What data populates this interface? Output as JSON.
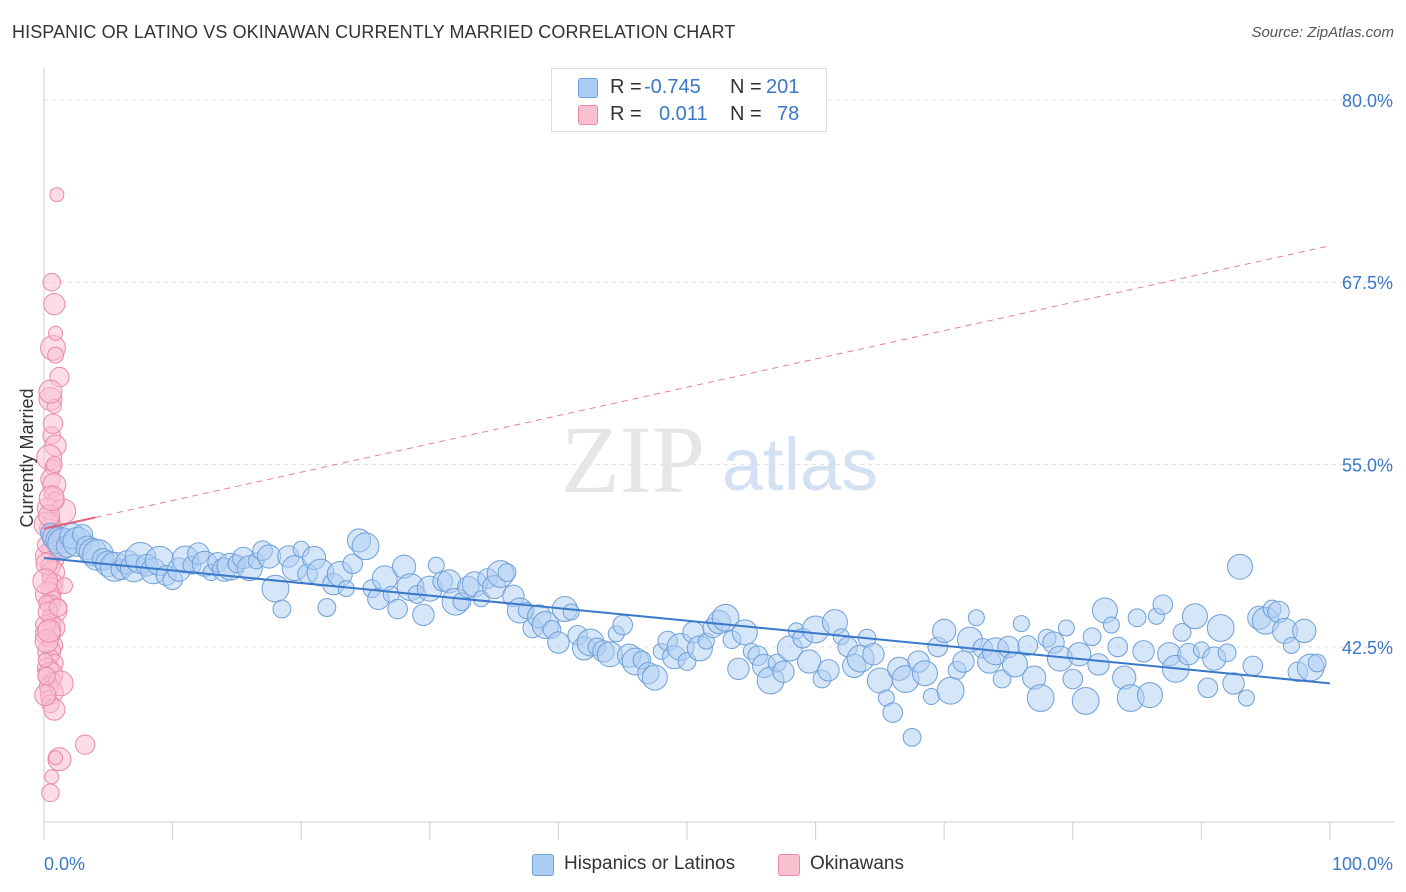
{
  "title": "HISPANIC OR LATINO VS OKINAWAN CURRENTLY MARRIED CORRELATION CHART",
  "source": "Source: ZipAtlas.com",
  "watermark": {
    "zip": "ZIP",
    "atlas": "atlas"
  },
  "legend_top": [
    {
      "r_label": "R =",
      "r_value": "-0.745",
      "n_label": "N =",
      "n_value": "201",
      "color": "#aecdf4",
      "border": "#6f9fd8"
    },
    {
      "r_label": "R =",
      "r_value": "0.011",
      "n_label": "N =",
      "n_value": "78",
      "color": "#f9c0d0",
      "border": "#e98aa8"
    }
  ],
  "legend_bottom": [
    {
      "label": "Hispanics or Latinos",
      "color": "#aecdf4",
      "border": "#6f9fd8"
    },
    {
      "label": "Okinawans",
      "color": "#f9c0d0",
      "border": "#e98aa8"
    }
  ],
  "chart_data": {
    "type": "scatter",
    "title": "HISPANIC OR LATINO VS OKINAWAN CURRENTLY MARRIED CORRELATION CHART",
    "xlabel": "",
    "ylabel": "Currently Married",
    "xlim": [
      0,
      100
    ],
    "ylim": [
      30.5,
      81.5
    ],
    "x_tick_labels": [
      "0.0%",
      "100.0%"
    ],
    "y_ticks": [
      42.5,
      55.0,
      67.5,
      80.0
    ],
    "y_tick_labels": [
      "42.5%",
      "55.0%",
      "67.5%",
      "80.0%"
    ],
    "grid": true,
    "colors": {
      "blue": "#3a78c9",
      "blue_fill": "#aecdf4",
      "pink": "#e0607e",
      "pink_fill": "#f9c0d0"
    },
    "series": [
      {
        "name": "Hispanics or Latinos",
        "trend": {
          "x": [
            0,
            100
          ],
          "y": [
            48.6,
            40.0
          ],
          "style": "solid"
        },
        "points": [
          [
            0.5,
            50.3
          ],
          [
            0.8,
            50.0
          ],
          [
            1.2,
            49.8
          ],
          [
            1.5,
            49.6
          ],
          [
            1.8,
            49.4
          ],
          [
            2.2,
            50.1
          ],
          [
            2.6,
            49.7
          ],
          [
            3.0,
            50.2
          ],
          [
            3.4,
            49.3
          ],
          [
            3.8,
            49.0
          ],
          [
            4.2,
            48.8
          ],
          [
            4.6,
            48.5
          ],
          [
            5.0,
            48.2
          ],
          [
            5.5,
            48.0
          ],
          [
            6.0,
            47.8
          ],
          [
            6.5,
            48.3
          ],
          [
            7.0,
            47.9
          ],
          [
            7.5,
            48.6
          ],
          [
            8.0,
            48.1
          ],
          [
            8.5,
            47.7
          ],
          [
            9.0,
            48.4
          ],
          [
            9.5,
            47.4
          ],
          [
            10.0,
            47.1
          ],
          [
            10.5,
            47.8
          ],
          [
            11.0,
            48.5
          ],
          [
            11.5,
            48.1
          ],
          [
            12.0,
            48.9
          ],
          [
            12.5,
            48.2
          ],
          [
            13.0,
            47.6
          ],
          [
            13.5,
            48.3
          ],
          [
            14.0,
            47.8
          ],
          [
            14.5,
            48.0
          ],
          [
            15.0,
            48.2
          ],
          [
            15.5,
            48.6
          ],
          [
            16.0,
            47.9
          ],
          [
            16.5,
            48.4
          ],
          [
            17.0,
            49.1
          ],
          [
            17.5,
            48.7
          ],
          [
            18.0,
            46.5
          ],
          [
            18.5,
            45.1
          ],
          [
            19.0,
            48.7
          ],
          [
            19.5,
            47.9
          ],
          [
            20.0,
            49.2
          ],
          [
            20.5,
            47.5
          ],
          [
            21.0,
            48.6
          ],
          [
            21.5,
            47.6
          ],
          [
            22.0,
            45.2
          ],
          [
            22.5,
            46.8
          ],
          [
            23.0,
            47.5
          ],
          [
            23.5,
            46.5
          ],
          [
            24.0,
            48.2
          ],
          [
            24.5,
            49.8
          ],
          [
            25.0,
            49.4
          ],
          [
            25.5,
            46.5
          ],
          [
            26.0,
            45.8
          ],
          [
            26.5,
            47.2
          ],
          [
            27.0,
            46.1
          ],
          [
            27.5,
            45.1
          ],
          [
            28.0,
            48.0
          ],
          [
            28.5,
            46.6
          ],
          [
            29.0,
            46.1
          ],
          [
            29.5,
            44.7
          ],
          [
            30.0,
            46.5
          ],
          [
            30.5,
            48.1
          ],
          [
            31.0,
            47.0
          ],
          [
            31.5,
            47.0
          ],
          [
            32.0,
            45.6
          ],
          [
            32.5,
            45.6
          ],
          [
            33.0,
            46.6
          ],
          [
            33.5,
            46.8
          ],
          [
            34.0,
            45.8
          ],
          [
            34.5,
            47.2
          ],
          [
            35.0,
            46.6
          ],
          [
            35.5,
            47.5
          ],
          [
            36.0,
            47.6
          ],
          [
            36.5,
            46.0
          ],
          [
            37.0,
            45.0
          ],
          [
            37.5,
            45.0
          ],
          [
            38.0,
            43.8
          ],
          [
            38.5,
            44.6
          ],
          [
            39.0,
            44.0
          ],
          [
            39.5,
            43.7
          ],
          [
            40.0,
            42.8
          ],
          [
            40.5,
            45.1
          ],
          [
            41.0,
            44.9
          ],
          [
            41.5,
            43.3
          ],
          [
            42.0,
            42.4
          ],
          [
            42.5,
            42.8
          ],
          [
            43.0,
            42.5
          ],
          [
            43.5,
            42.2
          ],
          [
            44.0,
            42.0
          ],
          [
            44.5,
            43.4
          ],
          [
            45.0,
            44.0
          ],
          [
            45.5,
            41.9
          ],
          [
            46.0,
            41.5
          ],
          [
            46.5,
            41.6
          ],
          [
            47.0,
            40.7
          ],
          [
            47.5,
            40.4
          ],
          [
            48.0,
            42.2
          ],
          [
            48.5,
            42.9
          ],
          [
            49.0,
            41.8
          ],
          [
            49.5,
            42.5
          ],
          [
            50.0,
            41.5
          ],
          [
            50.5,
            43.5
          ],
          [
            51.0,
            42.4
          ],
          [
            51.5,
            42.9
          ],
          [
            52.0,
            43.8
          ],
          [
            52.5,
            44.2
          ],
          [
            53.0,
            44.5
          ],
          [
            53.5,
            43.0
          ],
          [
            54.0,
            41.0
          ],
          [
            54.5,
            43.5
          ],
          [
            55.0,
            42.2
          ],
          [
            55.5,
            41.9
          ],
          [
            56.0,
            41.2
          ],
          [
            56.5,
            40.2
          ],
          [
            57.0,
            41.4
          ],
          [
            57.5,
            40.8
          ],
          [
            58.0,
            42.4
          ],
          [
            58.5,
            43.6
          ],
          [
            59.0,
            43.1
          ],
          [
            59.5,
            41.5
          ],
          [
            60.0,
            43.7
          ],
          [
            60.5,
            40.3
          ],
          [
            61.0,
            40.9
          ],
          [
            61.5,
            44.2
          ],
          [
            62.0,
            43.2
          ],
          [
            62.5,
            42.5
          ],
          [
            63.0,
            41.2
          ],
          [
            63.5,
            41.7
          ],
          [
            64.0,
            43.1
          ],
          [
            64.5,
            42.0
          ],
          [
            65.0,
            40.2
          ],
          [
            65.5,
            39.0
          ],
          [
            66.0,
            38.0
          ],
          [
            66.5,
            41.0
          ],
          [
            67.0,
            40.3
          ],
          [
            67.5,
            36.3
          ],
          [
            68.0,
            41.5
          ],
          [
            68.5,
            40.7
          ],
          [
            69.0,
            39.1
          ],
          [
            69.5,
            42.5
          ],
          [
            70.0,
            43.6
          ],
          [
            70.5,
            39.5
          ],
          [
            71.0,
            40.9
          ],
          [
            71.5,
            41.5
          ],
          [
            72.0,
            43.0
          ],
          [
            72.5,
            44.5
          ],
          [
            73.0,
            42.4
          ],
          [
            73.5,
            41.5
          ],
          [
            74.0,
            42.2
          ],
          [
            74.5,
            40.3
          ],
          [
            75.0,
            42.5
          ],
          [
            75.5,
            41.3
          ],
          [
            76.0,
            44.1
          ],
          [
            76.5,
            42.6
          ],
          [
            77.0,
            40.4
          ],
          [
            77.5,
            39.0
          ],
          [
            78.0,
            43.1
          ],
          [
            78.5,
            42.8
          ],
          [
            79.0,
            41.7
          ],
          [
            79.5,
            43.8
          ],
          [
            80.0,
            40.3
          ],
          [
            80.5,
            42.0
          ],
          [
            81.0,
            38.8
          ],
          [
            81.5,
            43.2
          ],
          [
            82.0,
            41.3
          ],
          [
            82.5,
            45.0
          ],
          [
            83.0,
            44.0
          ],
          [
            83.5,
            42.5
          ],
          [
            84.0,
            40.4
          ],
          [
            84.5,
            39.0
          ],
          [
            85.0,
            44.5
          ],
          [
            85.5,
            42.2
          ],
          [
            86.0,
            39.2
          ],
          [
            86.5,
            44.6
          ],
          [
            87.0,
            45.4
          ],
          [
            87.5,
            42.0
          ],
          [
            88.0,
            41.0
          ],
          [
            88.5,
            43.5
          ],
          [
            89.0,
            42.0
          ],
          [
            89.5,
            44.6
          ],
          [
            90.0,
            42.3
          ],
          [
            90.5,
            39.7
          ],
          [
            91.0,
            41.7
          ],
          [
            91.5,
            43.8
          ],
          [
            92.0,
            42.1
          ],
          [
            92.5,
            40.0
          ],
          [
            93.0,
            48.0
          ],
          [
            93.5,
            39.0
          ],
          [
            94.0,
            41.2
          ],
          [
            94.5,
            44.5
          ],
          [
            95.0,
            44.3
          ],
          [
            95.5,
            45.1
          ],
          [
            96.0,
            44.9
          ],
          [
            96.5,
            43.6
          ],
          [
            97.0,
            42.6
          ],
          [
            97.5,
            40.8
          ],
          [
            98.0,
            43.6
          ],
          [
            98.5,
            41.1
          ],
          [
            99.0,
            41.4
          ]
        ]
      },
      {
        "name": "Okinawans",
        "trend": {
          "x": [
            0,
            100
          ],
          "y": [
            50.6,
            70.0
          ],
          "style": "dashed",
          "solid_until_x": 4
        },
        "points": [
          [
            1.0,
            73.5
          ],
          [
            0.6,
            67.5
          ],
          [
            0.8,
            66.0
          ],
          [
            0.7,
            63.0
          ],
          [
            0.9,
            62.5
          ],
          [
            1.2,
            61.0
          ],
          [
            0.5,
            59.5
          ],
          [
            0.8,
            59.0
          ],
          [
            0.6,
            57.0
          ],
          [
            0.9,
            56.3
          ],
          [
            0.4,
            55.5
          ],
          [
            0.7,
            54.8
          ],
          [
            0.5,
            54.0
          ],
          [
            0.8,
            53.6
          ],
          [
            0.6,
            53.0
          ],
          [
            0.9,
            52.5
          ],
          [
            0.3,
            52.0
          ],
          [
            1.5,
            51.8
          ],
          [
            0.6,
            51.2
          ],
          [
            0.4,
            50.6
          ],
          [
            0.7,
            50.2
          ],
          [
            0.5,
            49.8
          ],
          [
            0.8,
            49.5
          ],
          [
            0.6,
            49.1
          ],
          [
            0.3,
            48.7
          ],
          [
            0.9,
            48.4
          ],
          [
            0.5,
            48.0
          ],
          [
            0.7,
            47.6
          ],
          [
            0.4,
            47.2
          ],
          [
            0.8,
            46.9
          ],
          [
            0.6,
            46.5
          ],
          [
            0.3,
            46.1
          ],
          [
            0.7,
            45.8
          ],
          [
            0.5,
            45.4
          ],
          [
            0.9,
            45.0
          ],
          [
            0.4,
            44.6
          ],
          [
            0.6,
            44.2
          ],
          [
            0.8,
            43.8
          ],
          [
            0.3,
            43.4
          ],
          [
            0.5,
            43.0
          ],
          [
            0.7,
            42.6
          ],
          [
            0.4,
            42.2
          ],
          [
            0.6,
            41.8
          ],
          [
            0.8,
            41.4
          ],
          [
            0.3,
            41.0
          ],
          [
            0.5,
            40.6
          ],
          [
            0.7,
            40.2
          ],
          [
            0.4,
            39.8
          ],
          [
            0.6,
            39.4
          ],
          [
            0.3,
            39.0
          ],
          [
            0.5,
            38.6
          ],
          [
            0.8,
            38.2
          ],
          [
            1.3,
            40.0
          ],
          [
            1.6,
            46.7
          ],
          [
            3.2,
            35.8
          ],
          [
            1.2,
            34.8
          ],
          [
            0.6,
            33.6
          ],
          [
            0.5,
            32.5
          ],
          [
            0.2,
            48.2
          ],
          [
            0.1,
            47.0
          ],
          [
            0.2,
            45.5
          ],
          [
            0.1,
            44.0
          ],
          [
            0.2,
            42.9
          ],
          [
            0.1,
            41.6
          ],
          [
            0.2,
            40.5
          ],
          [
            0.1,
            39.2
          ],
          [
            0.2,
            50.9
          ],
          [
            0.1,
            49.5
          ],
          [
            0.3,
            44.9
          ],
          [
            0.4,
            43.6
          ],
          [
            0.9,
            34.9
          ],
          [
            1.1,
            45.2
          ],
          [
            0.4,
            51.5
          ],
          [
            0.6,
            52.7
          ],
          [
            0.8,
            55.0
          ],
          [
            0.7,
            57.8
          ],
          [
            0.5,
            60.0
          ],
          [
            0.9,
            64.0
          ]
        ]
      }
    ]
  }
}
